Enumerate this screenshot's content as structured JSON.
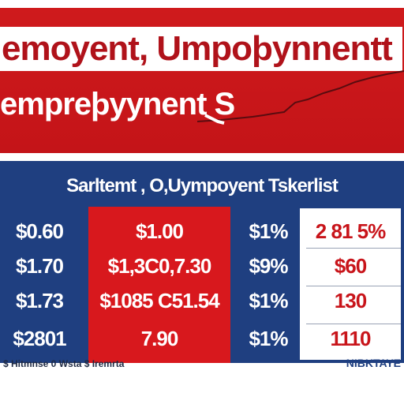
{
  "header": {
    "line1": "emoyent, Umpoþynnentt",
    "line2": "empreþyynent S"
  },
  "table": {
    "title": "Sarltemt , O,Uympoyent Tskerlist",
    "rows": [
      {
        "col1": "$0.60",
        "col2": "$1.00",
        "col3": "$1%",
        "col4": "2 81 5%"
      },
      {
        "col1": "$1.70",
        "col2": "$1,3C0,7.30",
        "col3": "$9%",
        "col4": "$60"
      },
      {
        "col1": "$1.73",
        "col2": "$1085 C51.54",
        "col3": "$1%",
        "col4": "130"
      },
      {
        "col1": "$2801",
        "col2": "7.90",
        "col3": "$1%",
        "col4": "1110"
      }
    ]
  },
  "footer": {
    "source_text": "$ Hitmnse 0 Wsta $ Iremrta",
    "brand": "NIBKTAYE"
  },
  "colors": {
    "header_red": "#cf1a1c",
    "panel_blue": "#1f3f80",
    "accent_red": "#d8181d",
    "text_white": "#ffffff"
  }
}
